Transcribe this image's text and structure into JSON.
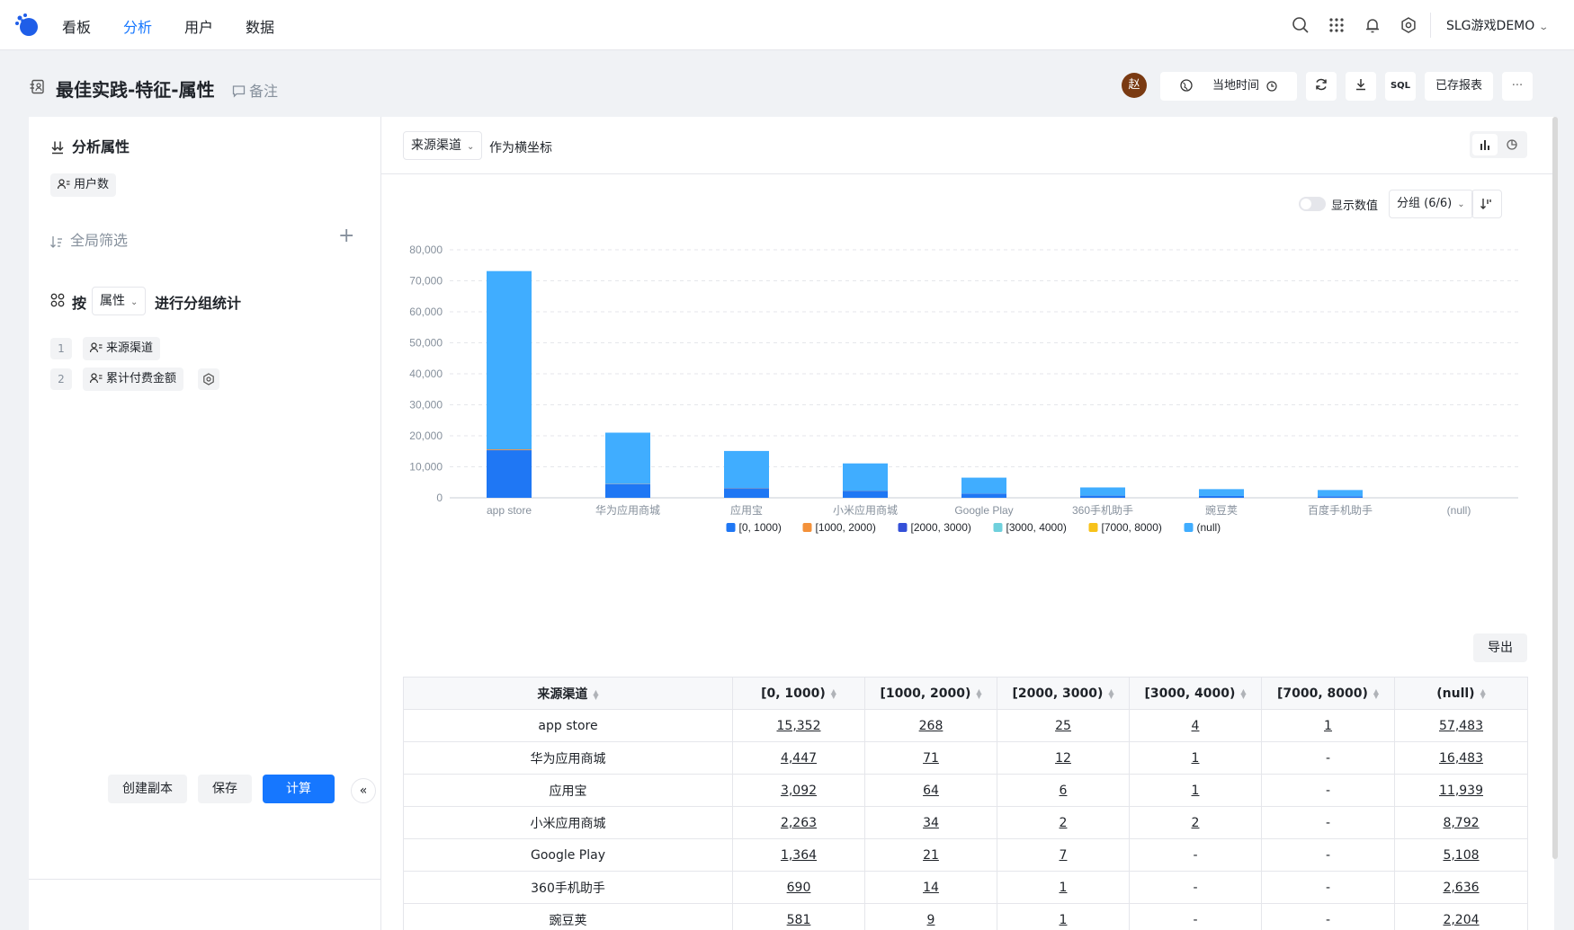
{
  "topnav": {
    "items": [
      "看板",
      "分析",
      "用户",
      "数据"
    ],
    "active_index": 1,
    "user_menu": "SLG游戏DEMO"
  },
  "header": {
    "title": "最佳实践-特征-属性",
    "note": "备注",
    "avatar": "赵",
    "time_button": "当地时间",
    "sql_button": "SQL",
    "saved_report_button": "已存报表",
    "more_button": "···"
  },
  "left": {
    "metric_section_title": "分析属性",
    "metric_chip": "用户数",
    "filter_section_title": "全局筛选",
    "filter_add": "+",
    "group_prefix": "按",
    "group_select": "属性",
    "group_suffix": "进行分组统计",
    "group_items": [
      {
        "index": "1",
        "label": "来源渠道"
      },
      {
        "index": "2",
        "label": "累计付费金额"
      }
    ],
    "buttons": {
      "copy": "创建副本",
      "save": "保存",
      "compute": "计算",
      "collapse": "«"
    }
  },
  "right": {
    "x_axis_select": "来源渠道",
    "x_axis_suffix": "作为横坐标",
    "show_values_label": "显示数值",
    "show_values_on": false,
    "group_select": "分组 (6/6)",
    "export_button": "导出"
  },
  "chart_data": {
    "type": "bar",
    "stacked": true,
    "categories": [
      "app store",
      "华为应用商城",
      "应用宝",
      "小米应用商城",
      "Google Play",
      "360手机助手",
      "豌豆荚",
      "百度手机助手",
      "(null)"
    ],
    "series": [
      {
        "name": "[0, 1000)",
        "color": "#1f77f4",
        "values": [
          15352,
          4447,
          3092,
          2263,
          1364,
          690,
          581,
          500,
          0
        ]
      },
      {
        "name": "[1000, 2000)",
        "color": "#f3913a",
        "values": [
          268,
          71,
          64,
          34,
          21,
          14,
          9,
          8,
          0
        ]
      },
      {
        "name": "[2000, 3000)",
        "color": "#3450d8",
        "values": [
          25,
          12,
          6,
          2,
          7,
          1,
          1,
          1,
          0
        ]
      },
      {
        "name": "[3000, 4000)",
        "color": "#6fd0dc",
        "values": [
          4,
          1,
          1,
          2,
          0,
          0,
          0,
          0,
          0
        ]
      },
      {
        "name": "[7000, 8000)",
        "color": "#f7c21a",
        "values": [
          1,
          0,
          0,
          0,
          0,
          0,
          0,
          0,
          0
        ]
      },
      {
        "name": "(null)",
        "color": "#40adff",
        "values": [
          57483,
          16483,
          11939,
          8792,
          5108,
          2636,
          2204,
          2000,
          0
        ]
      }
    ],
    "y_ticks": [
      "0",
      "10,000",
      "20,000",
      "30,000",
      "40,000",
      "50,000",
      "60,000",
      "70,000",
      "80,000"
    ],
    "ylim": [
      0,
      80000
    ],
    "grid": true,
    "legend_position": "bottom"
  },
  "table": {
    "headers": [
      "来源渠道",
      "[0, 1000)",
      "[1000, 2000)",
      "[2000, 3000)",
      "[3000, 4000)",
      "[7000, 8000)",
      "(null)"
    ],
    "rows": [
      [
        "app store",
        "15,352",
        "268",
        "25",
        "4",
        "1",
        "57,483"
      ],
      [
        "华为应用商城",
        "4,447",
        "71",
        "12",
        "1",
        "-",
        "16,483"
      ],
      [
        "应用宝",
        "3,092",
        "64",
        "6",
        "1",
        "-",
        "11,939"
      ],
      [
        "小米应用商城",
        "2,263",
        "34",
        "2",
        "2",
        "-",
        "8,792"
      ],
      [
        "Google Play",
        "1,364",
        "21",
        "7",
        "-",
        "-",
        "5,108"
      ],
      [
        "360手机助手",
        "690",
        "14",
        "1",
        "-",
        "-",
        "2,636"
      ],
      [
        "豌豆荚",
        "581",
        "9",
        "1",
        "-",
        "-",
        "2,204"
      ]
    ]
  }
}
